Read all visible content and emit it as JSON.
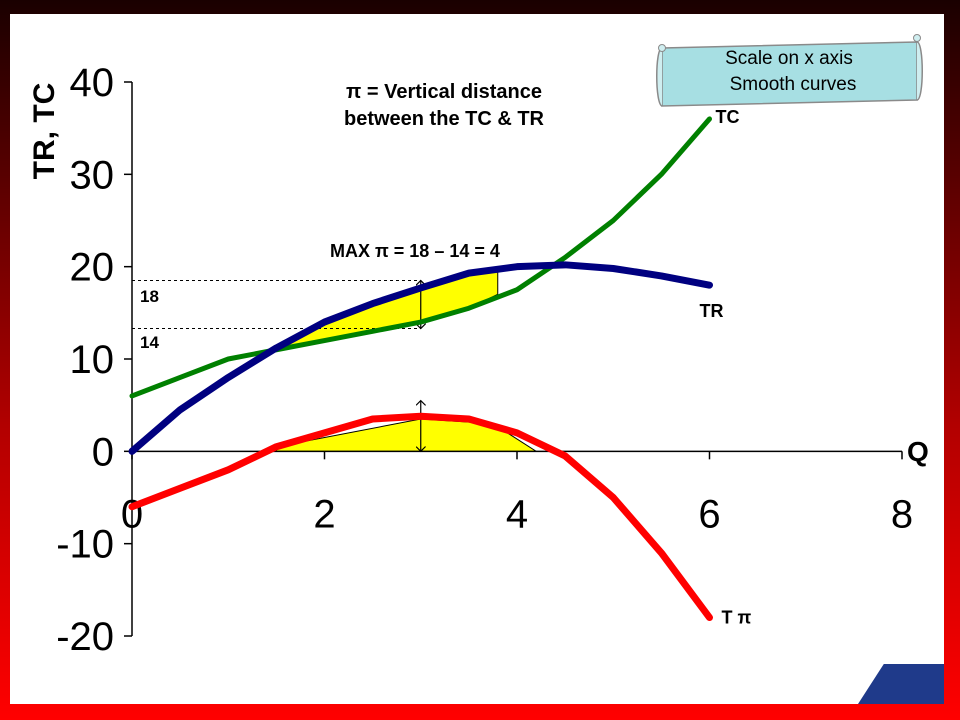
{
  "chart_data": {
    "type": "line",
    "title": "π = Vertical distance between  the TC & TR",
    "title_lines": [
      "π = Vertical distance",
      "between  the TC & TR"
    ],
    "xlabel": "Q",
    "ylabel": "TR, TC",
    "xlim": [
      0,
      8
    ],
    "ylim": [
      -20,
      40
    ],
    "x_ticks": [
      "0",
      "2",
      "4",
      "6",
      "8"
    ],
    "y_ticks": [
      "40",
      "30",
      "20",
      "10",
      "0",
      "-10",
      "-20"
    ],
    "grid": false,
    "series": [
      {
        "name": "TR",
        "color": "#000080",
        "x": [
          0,
          0.5,
          1,
          1.5,
          2,
          2.5,
          3,
          3.5,
          4,
          4.5,
          5,
          5.5,
          6
        ],
        "y": [
          0,
          4.5,
          8,
          11.2,
          14,
          16,
          17.7,
          19.3,
          20,
          20.2,
          19.8,
          19,
          18
        ]
      },
      {
        "name": "TC",
        "color": "#008000",
        "x": [
          0,
          0.5,
          1,
          1.5,
          2,
          2.5,
          3,
          3.5,
          4,
          4.5,
          5,
          5.5,
          6
        ],
        "y": [
          6,
          8,
          10,
          11,
          12,
          13,
          14,
          15.5,
          17.5,
          21,
          25,
          30,
          36
        ]
      },
      {
        "name": "T π",
        "color": "#ff0000",
        "x": [
          0,
          0.5,
          1,
          1.5,
          2,
          2.5,
          3,
          3.5,
          4,
          4.5,
          5,
          5.5,
          6
        ],
        "y": [
          -6,
          -4,
          -2,
          0.5,
          2,
          3.5,
          3.8,
          3.5,
          2,
          -0.5,
          -5,
          -11,
          -18
        ]
      }
    ],
    "annotations": {
      "max_profit": "MAX π = 18 – 14 = 4",
      "tr_level_label": "18",
      "tc_level_label": "14",
      "tr_level": 18.5,
      "tc_level": 13.3,
      "max_q": 3.0
    },
    "note_box": {
      "line1": "Scale on x axis",
      "line2": "Smooth curves"
    },
    "fill_color": "#ffff00",
    "tr_tc_fill": {
      "x": [
        1.5,
        2,
        2.5,
        3,
        3.5,
        3.8
      ],
      "upper": [
        11,
        14,
        16,
        17.7,
        19.3,
        20
      ],
      "lower": [
        11,
        12,
        13,
        14,
        15.5,
        17
      ]
    },
    "profit_fill": {
      "x": [
        1.5,
        3,
        3.75,
        4.2
      ],
      "upper": [
        0.5,
        3.5,
        3,
        0
      ],
      "lower": [
        0,
        0,
        0,
        0
      ]
    }
  }
}
